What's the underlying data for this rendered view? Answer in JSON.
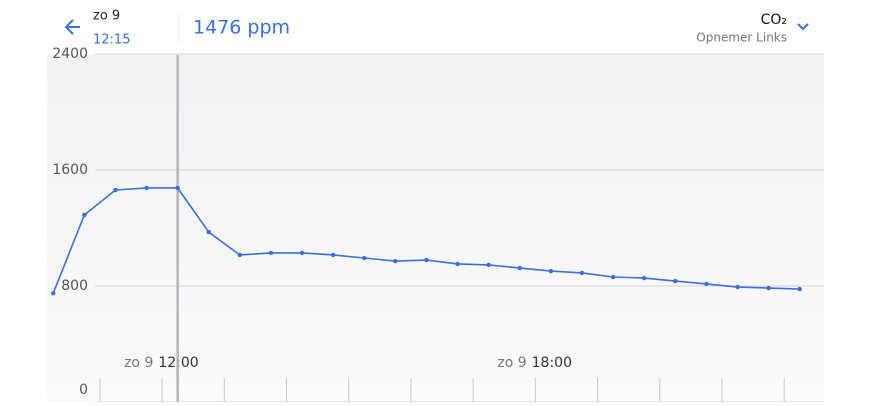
{
  "header": {
    "date": "zo 9",
    "time": "12:15",
    "reading": "1476 ppm",
    "sensor": "CO₂",
    "location": "Opnemer Links"
  },
  "chart_data": {
    "type": "line",
    "color": "#3b6fe0",
    "cursor_x": 12.25,
    "x": [
      10.25,
      10.75,
      11.25,
      11.75,
      12.25,
      12.75,
      13.25,
      13.75,
      14.25,
      14.75,
      15.25,
      15.75,
      16.25,
      16.75,
      17.25,
      17.75,
      18.25,
      18.75,
      19.25,
      19.75,
      20.25,
      20.75,
      21.25,
      21.75,
      22.25
    ],
    "values": [
      750,
      1290,
      1462,
      1476,
      1476,
      1172,
      1014,
      1028,
      1028,
      1014,
      993,
      972,
      979,
      952,
      945,
      924,
      903,
      890,
      862,
      855,
      834,
      814,
      793,
      786,
      779
    ],
    "xlim": [
      10.15,
      22.64
    ],
    "xticks": [
      {
        "value": 12,
        "day": "zo 9",
        "label": "12:00"
      },
      {
        "value": 18,
        "day": "zo 9",
        "label": "18:00"
      }
    ],
    "minor_xticks": [
      11,
      12,
      13,
      14,
      15,
      16,
      17,
      18,
      19,
      20,
      21,
      22
    ],
    "ylim": [
      0,
      2400
    ],
    "yticks": [
      0,
      800,
      1600,
      2400
    ],
    "grid": true
  }
}
